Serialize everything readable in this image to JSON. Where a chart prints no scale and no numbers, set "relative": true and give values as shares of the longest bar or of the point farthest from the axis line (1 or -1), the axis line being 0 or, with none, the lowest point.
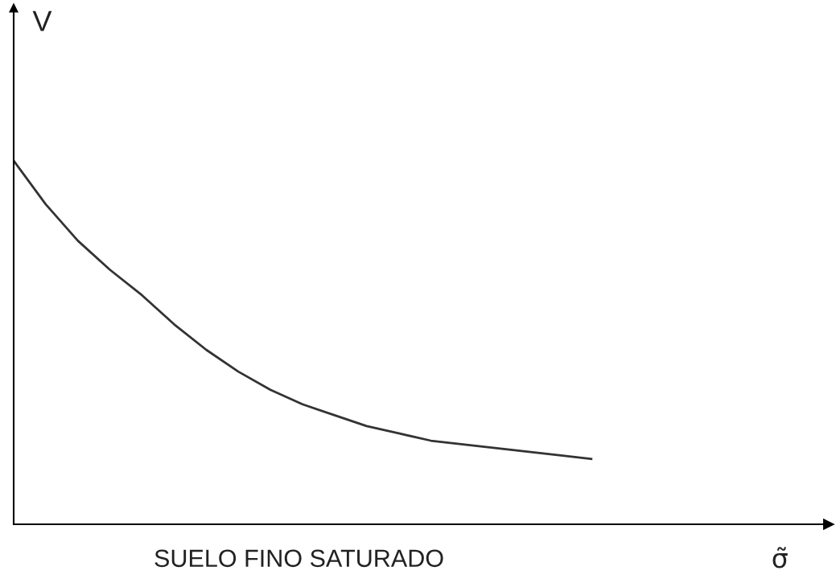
{
  "chart_data": {
    "type": "line",
    "relative": true,
    "xlabel": "SUELO FINO SATURADO",
    "ylabel": "V",
    "annotations": [
      "σ̃"
    ],
    "categories": [
      null,
      null,
      null,
      null,
      null,
      null,
      null,
      null,
      null,
      null,
      null,
      null,
      null,
      null,
      null,
      null,
      null,
      null,
      null,
      null,
      null,
      null,
      null,
      null,
      null,
      null
    ],
    "series": [
      {
        "color": "#333333",
        "values": [
          1.0,
          0.88,
          0.78,
          0.7,
          0.63,
          0.55,
          0.48,
          0.42,
          0.37,
          0.33,
          0.3,
          0.27,
          0.25,
          0.23,
          0.22,
          0.21,
          0.2,
          0.19,
          0.18,
          null,
          null,
          null,
          null,
          null,
          null,
          null
        ]
      }
    ],
    "grid": false,
    "legend": false
  }
}
